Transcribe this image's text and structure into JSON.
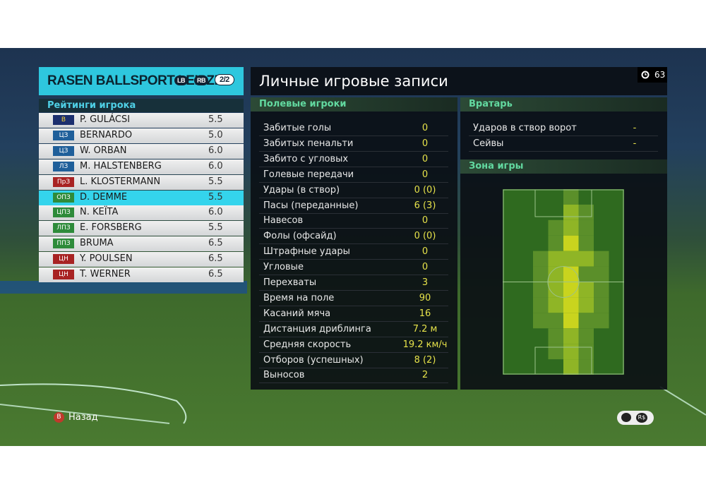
{
  "header": {
    "team": "RASEN BALLSPORT LEIPZIG",
    "badges": [
      "LB",
      "RB"
    ],
    "page": "2/2"
  },
  "title": "Личные игровые записи",
  "timer": "63",
  "ratings": {
    "title": "Рейтинги игрока",
    "players": [
      {
        "pos": "В",
        "name": "P. GULÁCSI",
        "rating": "5.5"
      },
      {
        "pos": "ЦЗ",
        "name": "BERNARDO",
        "rating": "5.0"
      },
      {
        "pos": "ЦЗ",
        "name": "W. ORBAN",
        "rating": "6.0"
      },
      {
        "pos": "ЛЗ",
        "name": "M. HALSTENBERG",
        "rating": "6.0"
      },
      {
        "pos": "ПрЗ",
        "name": "L. KLOSTERMANN",
        "rating": "5.5"
      },
      {
        "pos": "ОПЗ",
        "name": "D. DEMME",
        "rating": "5.5"
      },
      {
        "pos": "ЦПЗ",
        "name": "N. KEÏTA",
        "rating": "6.0"
      },
      {
        "pos": "ЛПЗ",
        "name": "E. FORSBERG",
        "rating": "5.5"
      },
      {
        "pos": "ППЗ",
        "name": "BRUMA",
        "rating": "6.5"
      },
      {
        "pos": "ЦН",
        "name": "Y. POULSEN",
        "rating": "6.5"
      },
      {
        "pos": "ЦН",
        "name": "T. WERNER",
        "rating": "6.5"
      }
    ]
  },
  "field_players": {
    "title": "Полевые игроки",
    "stats": [
      {
        "label": "Забитые голы",
        "value": "0"
      },
      {
        "label": "Забитых пенальти",
        "value": "0"
      },
      {
        "label": "Забито с угловых",
        "value": "0"
      },
      {
        "label": "Голевые передачи",
        "value": "0"
      },
      {
        "label": "Удары (в створ)",
        "value": "0 (0)"
      },
      {
        "label": "Пасы (переданные)",
        "value": "6 (3)"
      },
      {
        "label": "Навесов",
        "value": "0"
      },
      {
        "label": "Фолы (офсайд)",
        "value": "0 (0)"
      },
      {
        "label": "Штрафные удары",
        "value": "0"
      },
      {
        "label": "Угловые",
        "value": "0"
      },
      {
        "label": "Перехваты",
        "value": "3"
      },
      {
        "label": "Время на поле",
        "value": "90"
      },
      {
        "label": "Касаний мяча",
        "value": "16"
      },
      {
        "label": "Дистанция дриблинга",
        "value": "7.2 м"
      },
      {
        "label": "Средняя скорость",
        "value": "19.2 км/ч"
      },
      {
        "label": "Отборов (успешных)",
        "value": "8 (2)"
      },
      {
        "label": "Выносов",
        "value": "2"
      }
    ]
  },
  "goalkeeper": {
    "title": "Вратарь",
    "stats": [
      {
        "label": "Ударов в створ ворот",
        "value": "-"
      },
      {
        "label": "Сейвы",
        "value": "-"
      }
    ]
  },
  "zone": {
    "title": "Зона игры"
  },
  "footer": {
    "back_button": "B",
    "back": "Назад",
    "icon": "R$"
  }
}
